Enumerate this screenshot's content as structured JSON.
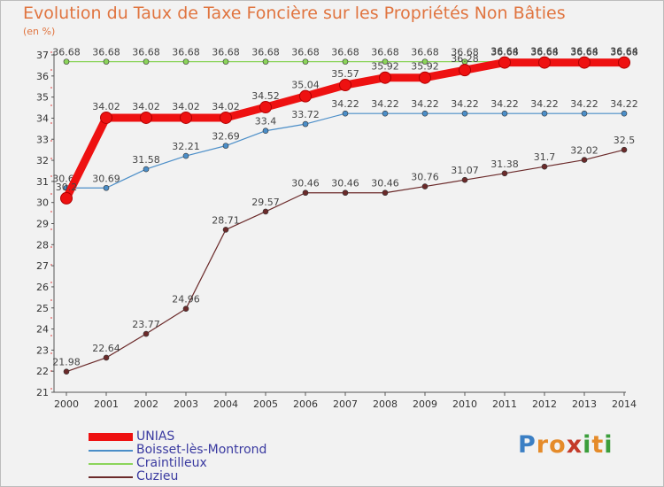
{
  "title": "Evolution du Taux de Taxe Foncière sur les Propriétés Non Bâties",
  "unit": "(en %)",
  "logo": {
    "letters": [
      "P",
      "r",
      "o",
      "x",
      "i",
      "t",
      "i"
    ],
    "colors": [
      "#3b7fc4",
      "#e58b2a",
      "#e58b2a",
      "#c43b2a",
      "#3b9e3b",
      "#e58b2a",
      "#3b9e3b"
    ]
  },
  "chart_data": {
    "type": "line",
    "x": [
      "2000",
      "2001",
      "2002",
      "2003",
      "2004",
      "2005",
      "2006",
      "2007",
      "2008",
      "2009",
      "2010",
      "2011",
      "2012",
      "2013",
      "2014"
    ],
    "ylim": [
      21,
      37
    ],
    "yticks": [
      "21",
      "22",
      "23",
      "24",
      "25",
      "26",
      "27",
      "28",
      "29",
      "30",
      "31",
      "32",
      "33",
      "34",
      "35",
      "36",
      "37"
    ],
    "grid": false,
    "legend_position": "bottom-left",
    "series": [
      {
        "name": "Craintilleux",
        "color": "#8bd45a",
        "values": [
          36.68,
          36.68,
          36.68,
          36.68,
          36.68,
          36.68,
          36.68,
          36.68,
          36.68,
          36.68,
          36.68,
          36.68,
          36.68,
          36.68,
          36.68
        ],
        "labels": [
          "36.68",
          "36.68",
          "36.68",
          "36.68",
          "36.68",
          "36.68",
          "36.68",
          "36.68",
          "36.68",
          "36.68",
          "36.68",
          "36.68",
          "36.68",
          "36.68",
          "36.68"
        ]
      },
      {
        "name": "Boisset-lès-Montrond",
        "color": "#4b8ec8",
        "values": [
          30.69,
          30.69,
          31.58,
          32.21,
          32.69,
          33.4,
          33.72,
          34.22,
          34.22,
          34.22,
          34.22,
          34.22,
          34.22,
          34.22,
          34.22
        ],
        "labels": [
          "30.69",
          "30.69",
          "31.58",
          "32.21",
          "32.69",
          "33.4",
          "33.72",
          "34.22",
          "34.22",
          "34.22",
          "34.22",
          "34.22",
          "34.22",
          "34.22",
          "34.22"
        ]
      },
      {
        "name": "Cuzieu",
        "color": "#6b2a2a",
        "values": [
          21.98,
          22.64,
          23.77,
          24.96,
          28.71,
          29.57,
          30.46,
          30.46,
          30.46,
          30.76,
          31.07,
          31.38,
          31.7,
          32.02,
          32.5
        ],
        "labels": [
          "21.98",
          "22.64",
          "23.77",
          "24.96",
          "28.71",
          "29.57",
          "30.46",
          "30.46",
          "30.46",
          "30.76",
          "31.07",
          "31.38",
          "31.7",
          "32.02",
          "32.5"
        ]
      },
      {
        "name": "UNIAS",
        "color": "#ee1111",
        "values": [
          30.2,
          34.02,
          34.02,
          34.02,
          34.02,
          34.52,
          35.04,
          35.57,
          35.92,
          35.92,
          36.28,
          36.64,
          36.64,
          36.64,
          36.64
        ],
        "labels": [
          "30.2",
          "34.02",
          "34.02",
          "34.02",
          "34.02",
          "34.52",
          "35.04",
          "35.57",
          "35.92",
          "35.92",
          "36.28",
          "36.64",
          "36.64",
          "36.64",
          "36.64"
        ]
      }
    ],
    "legend": [
      "UNIAS",
      "Boisset-lès-Montrond",
      "Craintilleux",
      "Cuzieu"
    ]
  }
}
